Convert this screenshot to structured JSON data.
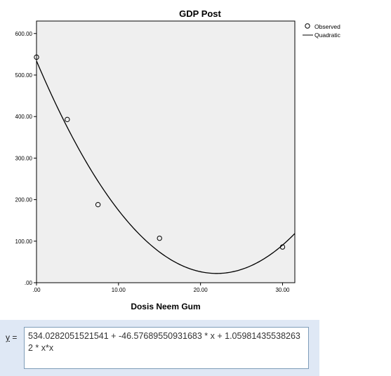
{
  "chart_data": {
    "type": "scatter",
    "title": "GDP Post",
    "xlabel": "Dosis Neem Gum",
    "ylabel": "",
    "xlim": [
      0,
      31.5
    ],
    "ylim": [
      0,
      630
    ],
    "x_ticks": [
      0,
      10,
      20,
      30
    ],
    "x_tick_labels": [
      ".00",
      "10.00",
      "20.00",
      "30.00"
    ],
    "y_ticks": [
      0,
      100,
      200,
      300,
      400,
      500,
      600
    ],
    "y_tick_labels": [
      ".00",
      "100.00",
      "200.00",
      "300.00",
      "400.00",
      "500.00",
      "600.00"
    ],
    "grid": false,
    "legend_position": "right",
    "series": [
      {
        "name": "Observed",
        "kind": "points",
        "x": [
          0,
          3.75,
          7.5,
          15,
          30
        ],
        "y": [
          543,
          393,
          188,
          107,
          86
        ]
      },
      {
        "name": "Quadratic",
        "kind": "curve",
        "coefficients": [
          534.0282051521541,
          -46.57689550931683,
          1.059814355382632
        ]
      }
    ]
  },
  "equation": {
    "lhs": "y",
    "lhs_suffix": " =",
    "text": "534.0282051521541 + -46.57689550931683 * x + 1.059814355382632 * x*x"
  },
  "colors": {
    "plot_background": "#efefef",
    "marker": "#000000",
    "curve": "#000000",
    "panel": "#dfe8f5"
  }
}
